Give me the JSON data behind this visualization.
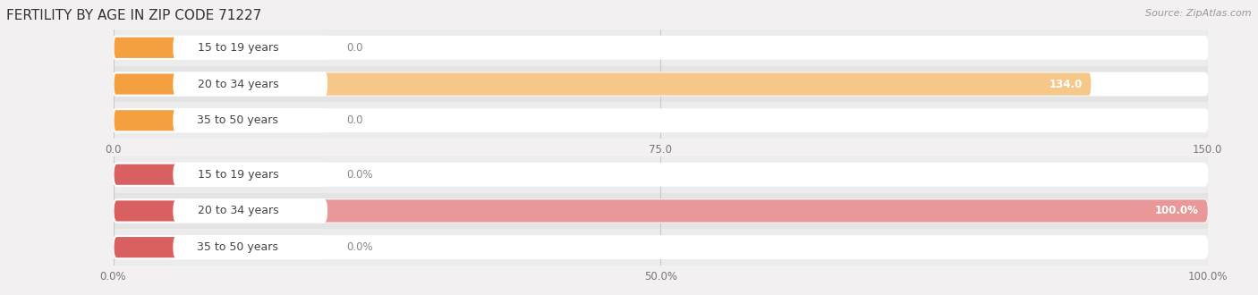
{
  "title": "FERTILITY BY AGE IN ZIP CODE 71227",
  "source": "Source: ZipAtlas.com",
  "top_chart": {
    "categories": [
      "15 to 19 years",
      "20 to 34 years",
      "35 to 50 years"
    ],
    "values": [
      0.0,
      134.0,
      0.0
    ],
    "xlim": [
      0,
      150.0
    ],
    "xticks": [
      0.0,
      75.0,
      150.0
    ],
    "bar_color": "#F5A040",
    "bar_color_light": "#F5C88A",
    "label_bg_color": "#FFFFFF",
    "row_bg_colors": [
      "#ECECEC",
      "#E4E4E4",
      "#ECECEC"
    ]
  },
  "bottom_chart": {
    "categories": [
      "15 to 19 years",
      "20 to 34 years",
      "35 to 50 years"
    ],
    "values": [
      0.0,
      100.0,
      0.0
    ],
    "xlim": [
      0,
      100.0
    ],
    "xticks": [
      0.0,
      50.0,
      100.0
    ],
    "bar_color": "#D96060",
    "bar_color_light": "#E89898",
    "label_bg_color": "#FFFFFF",
    "row_bg_colors": [
      "#ECECEC",
      "#E4E4E4",
      "#ECECEC"
    ]
  },
  "fig_bg_color": "#F2F0F0",
  "label_fontsize": 9,
  "value_fontsize": 8.5,
  "title_fontsize": 11,
  "source_fontsize": 8
}
